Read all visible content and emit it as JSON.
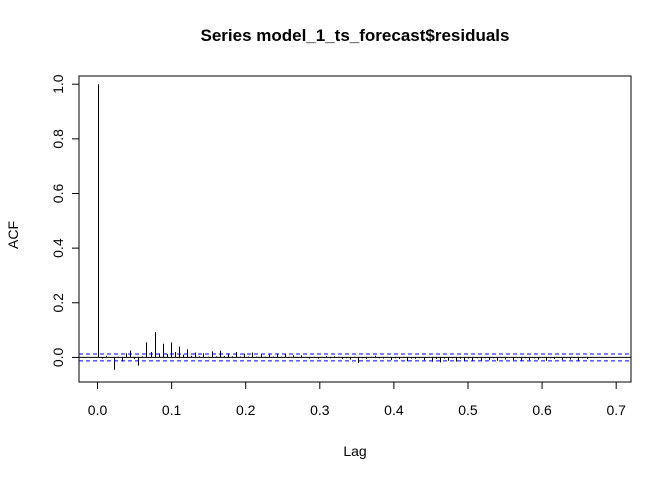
{
  "chart_data": {
    "type": "bar",
    "title": "Series  model_1_ts_forecast$residuals",
    "xlabel": "Lag",
    "ylabel": "ACF",
    "xlim": [
      -0.025,
      0.72
    ],
    "ylim": [
      -0.09,
      1.03
    ],
    "xticks": [
      0.0,
      0.1,
      0.2,
      0.3,
      0.4,
      0.5,
      0.6,
      0.7
    ],
    "xtick_labels": [
      "0.0",
      "0.1",
      "0.2",
      "0.3",
      "0.4",
      "0.5",
      "0.6",
      "0.7"
    ],
    "yticks": [
      0.0,
      0.2,
      0.4,
      0.6,
      0.8,
      1.0
    ],
    "ytick_labels": [
      "0.0",
      "0.2",
      "0.4",
      "0.6",
      "0.8",
      "1.0"
    ],
    "confidence_bound": 0.0125,
    "confidence_color": "#0000FF",
    "bar_color": "#000000",
    "series": [
      {
        "lag": [
          0.0,
          0.0055,
          0.011,
          0.0165,
          0.022,
          0.0275,
          0.033,
          0.0385,
          0.044,
          0.0495,
          0.055,
          0.0605,
          0.066,
          0.0715,
          0.077,
          0.0825,
          0.088,
          0.0935,
          0.099,
          0.1045,
          0.11,
          0.1155,
          0.121,
          0.1265,
          0.132,
          0.1375,
          0.143,
          0.1485,
          0.154,
          0.1595,
          0.165,
          0.1705,
          0.176,
          0.1815,
          0.187,
          0.1925,
          0.198,
          0.2035,
          0.209,
          0.2145,
          0.22,
          0.2255,
          0.231,
          0.2365,
          0.242,
          0.2475,
          0.253,
          0.2585,
          0.264,
          0.2695,
          0.275,
          0.2805,
          0.286,
          0.2915,
          0.297,
          0.3025,
          0.308,
          0.3135,
          0.319,
          0.3245,
          0.33,
          0.3355,
          0.341,
          0.3465,
          0.352,
          0.3575,
          0.363,
          0.3685,
          0.374,
          0.3795,
          0.385,
          0.3905,
          0.396,
          0.4015,
          0.407,
          0.4125,
          0.418,
          0.4235,
          0.429,
          0.4345,
          0.44,
          0.4455,
          0.451,
          0.4565,
          0.462,
          0.4675,
          0.473,
          0.4785,
          0.484,
          0.4895,
          0.495,
          0.5005,
          0.506,
          0.5115,
          0.517,
          0.5225,
          0.528,
          0.5335,
          0.539,
          0.5445,
          0.55,
          0.5555,
          0.561,
          0.5665,
          0.572,
          0.5775,
          0.583,
          0.5885,
          0.594,
          0.5995,
          0.605,
          0.6105,
          0.616,
          0.6215,
          0.627,
          0.6325,
          0.638,
          0.6435,
          0.649,
          0.6545,
          0.66,
          0.6655
        ],
        "acf": [
          1.0,
          -0.004,
          0.006,
          -0.002,
          -0.045,
          0.003,
          -0.015,
          0.015,
          0.025,
          -0.006,
          -0.03,
          0.004,
          0.055,
          0.02,
          0.092,
          0.015,
          0.05,
          0.012,
          0.055,
          0.02,
          0.04,
          0.01,
          0.03,
          0.006,
          0.018,
          0.004,
          0.015,
          0.003,
          0.022,
          0.004,
          0.025,
          0.005,
          0.015,
          0.004,
          0.02,
          0.003,
          0.014,
          0.003,
          0.018,
          0.003,
          0.012,
          0.003,
          0.01,
          0.003,
          0.015,
          0.003,
          0.012,
          0.002,
          0.008,
          0.002,
          0.008,
          0.002,
          -0.004,
          0.002,
          -0.004,
          0.002,
          0.005,
          -0.003,
          0.004,
          0.002,
          -0.005,
          -0.003,
          -0.008,
          0.002,
          -0.02,
          -0.003,
          -0.006,
          0.002,
          0.006,
          -0.003,
          -0.004,
          0.002,
          -0.01,
          -0.003,
          -0.006,
          0.002,
          -0.014,
          -0.004,
          -0.005,
          -0.003,
          -0.01,
          0.002,
          -0.016,
          -0.006,
          -0.018,
          -0.004,
          -0.012,
          -0.003,
          -0.015,
          -0.005,
          -0.014,
          -0.004,
          -0.012,
          -0.003,
          -0.012,
          -0.003,
          -0.01,
          -0.003,
          -0.012,
          -0.003,
          -0.008,
          -0.002,
          -0.01,
          -0.003,
          -0.012,
          -0.003,
          -0.01,
          -0.003,
          -0.008,
          -0.002,
          -0.012,
          -0.003,
          -0.006,
          -0.002,
          -0.01,
          -0.003,
          -0.008,
          -0.002,
          -0.014,
          -0.003,
          -0.006,
          -0.002
        ]
      }
    ],
    "grid": false,
    "legend": "none"
  }
}
